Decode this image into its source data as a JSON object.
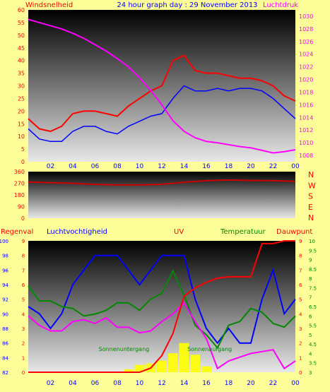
{
  "header": {
    "left_label": "Windsnelheid",
    "title": "24 hour graph day : 29 November 2013",
    "right_label": "Luchtdruk"
  },
  "colors": {
    "background": "#ffff99",
    "wind": "#ff0000",
    "gust": "#0000ff",
    "pressure": "#ff00ff",
    "direction": "#cc0000",
    "rain": "#ff0000",
    "humidity": "#0000ff",
    "uv": "#ffff00",
    "temperature": "#008800",
    "dewpoint": "#ff00ff",
    "axis_text_left": "#ff0000",
    "axis_text_pressure": "#ff00ff",
    "axis_text_humidity": "#0000ff",
    "axis_text_temp": "#008800"
  },
  "x_ticks": [
    "02",
    "04",
    "06",
    "08",
    "10",
    "12",
    "14",
    "16",
    "18",
    "20",
    "22",
    "00"
  ],
  "chart_data": [
    {
      "type": "line",
      "title": "24 hour graph day : 29 November 2013",
      "y_left": {
        "label": "Windsnelheid",
        "lim": [
          0,
          60
        ],
        "ticks": [
          "0",
          "5",
          "10",
          "15",
          "20",
          "25",
          "30",
          "35",
          "40",
          "45",
          "50",
          "55",
          "60"
        ]
      },
      "y_right": {
        "label": "Luchtdruk",
        "lim": [
          1007,
          1031
        ],
        "ticks": [
          "1008",
          "1010",
          "1012",
          "1014",
          "1016",
          "1018",
          "1020",
          "1022",
          "1024",
          "1026",
          "1028",
          "1030"
        ]
      },
      "x": [
        0,
        1,
        2,
        3,
        4,
        5,
        6,
        7,
        8,
        9,
        10,
        11,
        12,
        13,
        14,
        15,
        16,
        17,
        18,
        19,
        20,
        21,
        22,
        23,
        24
      ],
      "series": [
        {
          "name": "Windsnelheid",
          "axis": "left",
          "values": [
            17,
            13,
            12,
            14,
            19,
            20,
            20,
            19,
            18,
            22,
            25,
            28,
            30,
            40,
            42,
            36,
            35,
            35,
            34,
            33,
            33,
            32,
            30,
            26,
            24
          ]
        },
        {
          "name": "Gust",
          "axis": "left",
          "values": [
            13,
            9,
            8,
            8,
            12,
            14,
            14,
            12,
            11,
            14,
            16,
            18,
            19,
            25,
            30,
            28,
            28,
            29,
            28,
            29,
            29,
            28,
            25,
            21,
            17
          ]
        },
        {
          "name": "Luchtdruk",
          "axis": "right",
          "values": [
            1029.5,
            1029,
            1028.5,
            1028,
            1027.3,
            1026.5,
            1025.5,
            1024.5,
            1023.3,
            1022,
            1020.3,
            1018.3,
            1016,
            1013.5,
            1011.8,
            1010.8,
            1010.2,
            1010,
            1009.7,
            1009.4,
            1009.2,
            1008.8,
            1008.4,
            1008.6,
            1008.9
          ]
        }
      ]
    },
    {
      "type": "line",
      "y_left": {
        "lim": [
          0,
          360
        ],
        "ticks": [
          "0",
          "90",
          "180",
          "270",
          "360"
        ]
      },
      "y_right": {
        "labels": [
          "N",
          "W",
          "S",
          "E",
          "N"
        ]
      },
      "x": [
        0,
        2,
        4,
        6,
        8,
        10,
        12,
        14,
        16,
        18,
        20,
        22,
        24
      ],
      "series": [
        {
          "name": "Windrichting",
          "values": [
            280,
            275,
            270,
            262,
            258,
            258,
            262,
            278,
            290,
            295,
            292,
            290,
            285
          ]
        }
      ]
    },
    {
      "type": "line",
      "labels": {
        "rain": "Regenval",
        "humidity": "Luchtvochtigheid",
        "uv": "UV",
        "temperature": "Temperatuur",
        "dewpoint": "Dauwpunt"
      },
      "axes": {
        "rain": [
          "0",
          "1",
          "2",
          "3",
          "4",
          "5",
          "6",
          "7",
          "8",
          "9"
        ],
        "humidity": [
          "82",
          "84",
          "86",
          "88",
          "90",
          "92",
          "94",
          "96",
          "98",
          "100"
        ],
        "uv": [
          "0",
          "1",
          "2",
          "3",
          "4",
          "5",
          "6",
          "7",
          "8",
          "9"
        ],
        "temperature": [
          "3",
          "3.5",
          "4",
          "4.5",
          "5",
          "5.5",
          "6",
          "6.5",
          "7",
          "7.5",
          "8",
          "8.5",
          "9",
          "9.5",
          "10"
        ]
      },
      "annotations": [
        "Sonnenuntergang",
        "Sonnenaufgang"
      ],
      "x": [
        0,
        1,
        2,
        3,
        4,
        5,
        6,
        7,
        8,
        9,
        10,
        11,
        12,
        13,
        14,
        15,
        16,
        17,
        18,
        19,
        20,
        21,
        22,
        23,
        24
      ],
      "series": [
        {
          "name": "Regenval",
          "axis": "rain",
          "values": [
            0,
            0,
            0,
            0,
            0,
            0,
            0,
            0,
            0,
            0,
            0,
            0.3,
            1.2,
            2.8,
            5.5,
            6.1,
            6.5,
            6.8,
            6.9,
            6.9,
            6.9,
            9.3,
            9.3,
            9.5,
            9.5
          ]
        },
        {
          "name": "Luchtvochtigheid",
          "axis": "humidity",
          "values": [
            91,
            90,
            88,
            90,
            94,
            96,
            98,
            98,
            98,
            96,
            94,
            96,
            98,
            98,
            98,
            92,
            88,
            86,
            88,
            86,
            86,
            92,
            96,
            90,
            92
          ]
        },
        {
          "name": "UV",
          "axis": "uv",
          "values": [
            0,
            0,
            0,
            0,
            0,
            0,
            0,
            0,
            0,
            0.2,
            0.5,
            0.6,
            0.8,
            1.3,
            2.0,
            1.2,
            0.4,
            0,
            0,
            0,
            0,
            0,
            0,
            0,
            0
          ]
        },
        {
          "name": "Temperatuur",
          "axis": "temperature",
          "values": [
            7.6,
            6.8,
            6.8,
            6.5,
            6.4,
            6.0,
            6.1,
            6.3,
            6.7,
            6.7,
            6.3,
            6.9,
            7.2,
            8.4,
            7.1,
            5.5,
            5.0,
            4.3,
            5.5,
            5.7,
            6.4,
            6.2,
            5.6,
            5.4,
            6.0
          ]
        },
        {
          "name": "Dauwpunt",
          "axis": "temperature",
          "values": [
            6.0,
            5.5,
            5.2,
            5.2,
            5.7,
            5.8,
            5.6,
            5.9,
            5.4,
            5.4,
            5.1,
            5.2,
            5.7,
            6.1,
            6.7,
            5.7,
            4.8,
            3.2,
            3.6,
            3.8,
            4.0,
            4.1,
            4.2,
            3.2,
            3.6
          ]
        }
      ]
    }
  ]
}
